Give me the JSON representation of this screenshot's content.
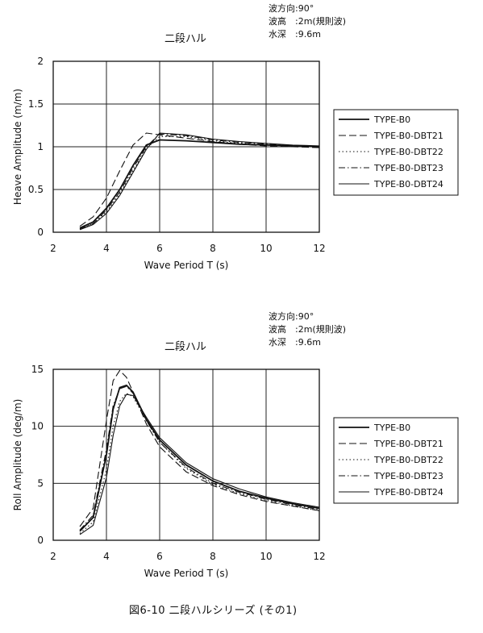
{
  "caption": "図6-10 二段ハルシリーズ (その1)",
  "chart_data": [
    {
      "type": "line",
      "title": "二段ハル",
      "conditions": [
        "波方向:90°",
        "波高　:2m(規則波)",
        "水深　:9.6m"
      ],
      "xlabel": "Wave Period T (s)",
      "ylabel": "Heave Amplitude (m/m)",
      "xlim": [
        2,
        12
      ],
      "ylim": [
        0,
        2
      ],
      "xticks": [
        "2",
        "4",
        "6",
        "8",
        "10",
        "12"
      ],
      "yticks": [
        "0",
        "0.5",
        "1",
        "1.5",
        "2"
      ],
      "grid": true,
      "legend_position": "right",
      "series": [
        {
          "name": "TYPE-B0",
          "dash": "solid",
          "x": [
            3,
            3.5,
            4,
            4.5,
            5,
            5.5,
            6,
            7,
            8,
            9,
            10,
            11,
            12
          ],
          "y": [
            0.05,
            0.12,
            0.28,
            0.5,
            0.78,
            1.02,
            1.08,
            1.07,
            1.05,
            1.03,
            1.02,
            1.01,
            1.0
          ]
        },
        {
          "name": "TYPE-B0-DBT21",
          "dash": "dashed",
          "x": [
            3,
            3.5,
            4,
            4.5,
            5,
            5.5,
            6,
            7,
            8,
            9,
            10,
            11,
            12
          ],
          "y": [
            0.07,
            0.18,
            0.4,
            0.72,
            1.02,
            1.16,
            1.14,
            1.1,
            1.06,
            1.03,
            1.01,
            1.0,
            0.99
          ]
        },
        {
          "name": "TYPE-B0-DBT22",
          "dash": "dotted",
          "x": [
            3,
            3.5,
            4,
            4.5,
            5,
            5.5,
            6,
            7,
            8,
            9,
            10,
            11,
            12
          ],
          "y": [
            0.04,
            0.1,
            0.24,
            0.45,
            0.72,
            0.98,
            1.12,
            1.12,
            1.07,
            1.04,
            1.02,
            1.01,
            1.0
          ]
        },
        {
          "name": "TYPE-B0-DBT23",
          "dash": "dashdot",
          "x": [
            3,
            3.5,
            4,
            4.5,
            5,
            5.5,
            6,
            7,
            8,
            9,
            10,
            11,
            12
          ],
          "y": [
            0.04,
            0.1,
            0.26,
            0.47,
            0.75,
            1.0,
            1.15,
            1.13,
            1.08,
            1.05,
            1.03,
            1.01,
            1.0
          ]
        },
        {
          "name": "TYPE-B0-DBT24",
          "dash": "solid",
          "x": [
            3,
            3.5,
            4,
            4.5,
            5,
            5.5,
            6,
            7,
            8,
            9,
            10,
            11,
            12
          ],
          "y": [
            0.03,
            0.09,
            0.22,
            0.43,
            0.7,
            0.97,
            1.16,
            1.14,
            1.09,
            1.06,
            1.04,
            1.02,
            1.01
          ]
        }
      ]
    },
    {
      "type": "line",
      "title": "二段ハル",
      "conditions": [
        "波方向:90°",
        "波高　:2m(規則波)",
        "水深　:9.6m"
      ],
      "xlabel": "Wave Period T (s)",
      "ylabel": "Roll Amplitude (deg/m)",
      "xlim": [
        2,
        12
      ],
      "ylim": [
        0,
        15
      ],
      "xticks": [
        "2",
        "4",
        "6",
        "8",
        "10",
        "12"
      ],
      "yticks": [
        "0",
        "5",
        "10",
        "15"
      ],
      "grid": true,
      "legend_position": "right",
      "series": [
        {
          "name": "TYPE-B0",
          "dash": "solid",
          "x": [
            3,
            3.5,
            4,
            4.25,
            4.5,
            4.75,
            5,
            5.5,
            6,
            7,
            8,
            9,
            10,
            11,
            12
          ],
          "y": [
            0.8,
            2.0,
            7.5,
            11.5,
            13.4,
            13.6,
            13.0,
            10.6,
            8.8,
            6.6,
            5.2,
            4.3,
            3.7,
            3.2,
            2.8
          ]
        },
        {
          "name": "TYPE-B0-DBT21",
          "dash": "dashed",
          "x": [
            3,
            3.5,
            4,
            4.25,
            4.5,
            4.75,
            5,
            5.5,
            6,
            7,
            8,
            9,
            10,
            11,
            12
          ],
          "y": [
            1.2,
            2.8,
            10.5,
            14.0,
            14.9,
            14.3,
            13.0,
            10.2,
            8.2,
            6.0,
            4.8,
            4.0,
            3.4,
            3.0,
            2.6
          ]
        },
        {
          "name": "TYPE-B0-DBT22",
          "dash": "dotted",
          "x": [
            3,
            3.5,
            4,
            4.25,
            4.5,
            4.75,
            5,
            5.5,
            6,
            7,
            8,
            9,
            10,
            11,
            12
          ],
          "y": [
            0.6,
            1.6,
            6.2,
            10.0,
            12.2,
            12.9,
            12.6,
            10.5,
            8.6,
            6.3,
            4.9,
            4.1,
            3.5,
            3.0,
            2.6
          ]
        },
        {
          "name": "TYPE-B0-DBT23",
          "dash": "dashdot",
          "x": [
            3,
            3.5,
            4,
            4.25,
            4.5,
            4.75,
            5,
            5.5,
            6,
            7,
            8,
            9,
            10,
            11,
            12
          ],
          "y": [
            0.9,
            2.2,
            8.0,
            11.8,
            13.3,
            13.5,
            12.9,
            10.5,
            8.6,
            6.4,
            5.0,
            4.2,
            3.6,
            3.1,
            2.7
          ]
        },
        {
          "name": "TYPE-B0-DBT24",
          "dash": "solid",
          "x": [
            3,
            3.5,
            4,
            4.25,
            4.5,
            4.75,
            5,
            5.5,
            6,
            7,
            8,
            9,
            10,
            11,
            12
          ],
          "y": [
            0.5,
            1.3,
            5.5,
            9.2,
            11.8,
            12.8,
            12.7,
            10.8,
            9.0,
            6.8,
            5.4,
            4.5,
            3.8,
            3.3,
            2.9
          ]
        }
      ]
    }
  ]
}
